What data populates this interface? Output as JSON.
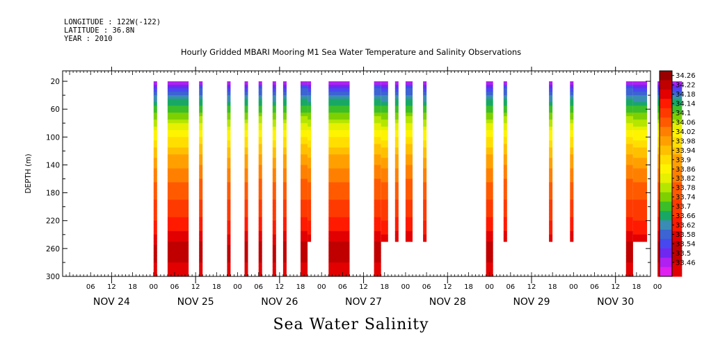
{
  "header": {
    "longitude": "LONGITUDE : 122W(-122)",
    "latitude": "LATITUDE : 36.8N",
    "year": "YEAR : 2010"
  },
  "title": "Hourly Gridded MBARI Mooring M1 Sea Water Temperature and Salinity Observations",
  "subtitle": "Sea Water Salinity",
  "chart_data": {
    "type": "heatmap",
    "ylabel": "DEPTH (m)",
    "y_ticks": [
      20,
      60,
      100,
      140,
      180,
      220,
      260,
      300
    ],
    "ylim": [
      300,
      5
    ],
    "x_hour_labels": [
      "06",
      "12",
      "18",
      "00",
      "06",
      "12",
      "18",
      "00",
      "06",
      "12",
      "18",
      "00",
      "06",
      "12",
      "18",
      "00",
      "06",
      "12",
      "18",
      "00",
      "06",
      "12",
      "18",
      "00",
      "06",
      "12",
      "18",
      "00"
    ],
    "x_day_labels": [
      "NOV 24",
      "NOV 25",
      "NOV 26",
      "NOV 27",
      "NOV 28",
      "NOV 29",
      "NOV 30"
    ],
    "colorbar_levels": [
      "34.26",
      "34.22",
      "34.18",
      "34.14",
      "34.1",
      "34.06",
      "34.02",
      "33.98",
      "33.94",
      "33.9",
      "33.86",
      "33.82",
      "33.78",
      "33.74",
      "33.7",
      "33.66",
      "33.62",
      "33.58",
      "33.54",
      "33.5",
      "33.46"
    ],
    "colors": [
      "#9a0000",
      "#c00000",
      "#e20000",
      "#ff1a00",
      "#ff3a00",
      "#ff5a00",
      "#ff8000",
      "#ffa000",
      "#ffc000",
      "#ffde00",
      "#fff400",
      "#e6f000",
      "#b4e600",
      "#7ed000",
      "#3cbe28",
      "#18a864",
      "#3a8cb4",
      "#3c64d2",
      "#4848f0",
      "#7028f0",
      "#b020f0",
      "#e020f0"
    ],
    "observation_periods_hours": [
      [
        12,
        13,
        300
      ],
      [
        16,
        22,
        300
      ],
      [
        25,
        26,
        300
      ],
      [
        33,
        34,
        300
      ],
      [
        38,
        39,
        300
      ],
      [
        42,
        43,
        300
      ],
      [
        46,
        47,
        300
      ],
      [
        49,
        50,
        300
      ],
      [
        54,
        56,
        300
      ],
      [
        56,
        57,
        250
      ],
      [
        62,
        68,
        300
      ],
      [
        75,
        77,
        300
      ],
      [
        77,
        79,
        250
      ],
      [
        81,
        82,
        250
      ],
      [
        84,
        86,
        250
      ],
      [
        89,
        90,
        250
      ],
      [
        107,
        109,
        300
      ],
      [
        112,
        113,
        250
      ],
      [
        125,
        126,
        250
      ],
      [
        131,
        132,
        250
      ],
      [
        147,
        149,
        300
      ],
      [
        149,
        153,
        250
      ],
      [
        156,
        163,
        300
      ]
    ],
    "salinity_profile": [
      [
        20,
        33.46
      ],
      [
        35,
        33.6
      ],
      [
        60,
        33.72
      ],
      [
        90,
        33.86
      ],
      [
        120,
        33.96
      ],
      [
        150,
        34.04
      ],
      [
        190,
        34.1
      ],
      [
        230,
        34.16
      ],
      [
        260,
        34.24
      ],
      [
        300,
        34.2
      ]
    ]
  }
}
